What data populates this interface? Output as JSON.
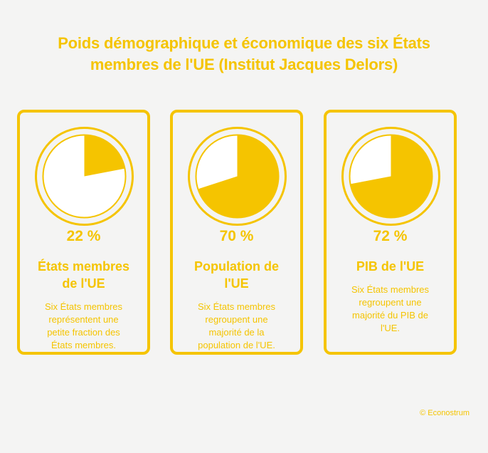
{
  "title_line1": "Poids démographique et économique des six États",
  "title_line2": "membres de l'UE (Institut Jacques Delors)",
  "credit": "© Econostrum",
  "colors": {
    "accent": "#f5c400",
    "background": "#f4f4f3",
    "pie_empty": "#ffffff"
  },
  "chart_data": {
    "type": "pie",
    "unit": "%",
    "items": [
      {
        "value": 22,
        "value_label": "22 %",
        "label_lines": [
          "États membres",
          "de l'UE"
        ],
        "description_lines": [
          "Six États membres",
          "représentent une",
          "petite fraction des",
          "États membres."
        ]
      },
      {
        "value": 70,
        "value_label": "70 %",
        "label_lines": [
          "Population de",
          "l'UE"
        ],
        "description_lines": [
          "Six États membres",
          "regroupent une",
          "majorité de la",
          "population de l'UE."
        ]
      },
      {
        "value": 72,
        "value_label": "72 %",
        "label_lines": [
          "PIB de l'UE"
        ],
        "description_lines": [
          "Six États membres",
          "regroupent une",
          "majorité du PIB de",
          "l'UE."
        ]
      }
    ]
  }
}
